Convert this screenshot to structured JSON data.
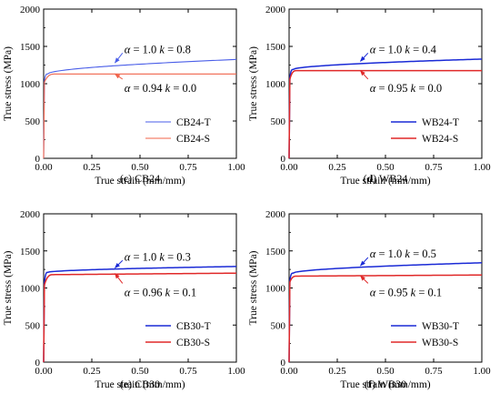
{
  "chart_data": [
    {
      "type": "line",
      "caption_letter": "(c)",
      "caption_text": "CB24",
      "xlabel": "True strain (mm/mm)",
      "ylabel": "True stress (MPa)",
      "xlim": [
        0,
        1.0
      ],
      "ylim": [
        0,
        2000
      ],
      "xticks": [
        "0.00",
        "0.25",
        "0.50",
        "0.75",
        "1.00"
      ],
      "yticks": [
        "0",
        "500",
        "1000",
        "1500",
        "2000"
      ],
      "legend_position": "bottom-right",
      "series": [
        {
          "name": "CB24-T",
          "color": "#4a5ee8",
          "yield": 1040,
          "peak": 1130,
          "x_peak": 0.02,
          "x_end": 1.0,
          "y_end": 1325,
          "curve": "hardening"
        },
        {
          "name": "CB24-S",
          "color": "#f0634a",
          "yield": 1020,
          "peak": 1130,
          "x_peak": 0.06,
          "x_end": 1.0,
          "y_end": 1130,
          "curve": "flat"
        }
      ],
      "annotations": [
        {
          "alpha": "1.0",
          "k": "0.8",
          "series": 0,
          "arrow_x": 0.37,
          "arrow_y": 1280,
          "text_x": 0.4,
          "text_y": 1460
        },
        {
          "alpha": "0.94",
          "k": "0.0",
          "series": 1,
          "arrow_x": 0.37,
          "arrow_y": 1130,
          "text_x": 0.4,
          "text_y": 940
        }
      ]
    },
    {
      "type": "line",
      "caption_letter": "(d)",
      "caption_text": "WB24",
      "xlabel": "True strain (mm/mm)",
      "ylabel": "True stress (MPa)",
      "xlim": [
        0,
        1.0
      ],
      "ylim": [
        0,
        2000
      ],
      "xticks": [
        "0.00",
        "0.25",
        "0.50",
        "0.75",
        "1.00"
      ],
      "yticks": [
        "0",
        "500",
        "1000",
        "1500",
        "2000"
      ],
      "legend_position": "bottom-right",
      "series": [
        {
          "name": "WB24-T",
          "color": "#1a2ad6",
          "yield": 1080,
          "peak": 1190,
          "x_peak": 0.02,
          "x_end": 1.0,
          "y_end": 1330,
          "curve": "hardening"
        },
        {
          "name": "WB24-S",
          "color": "#e02828",
          "yield": 1060,
          "peak": 1175,
          "x_peak": 0.04,
          "x_end": 1.0,
          "y_end": 1175,
          "curve": "flat"
        }
      ],
      "annotations": [
        {
          "alpha": "1.0",
          "k": "0.4",
          "series": 0,
          "arrow_x": 0.37,
          "arrow_y": 1300,
          "text_x": 0.4,
          "text_y": 1460
        },
        {
          "alpha": "0.95",
          "k": "0.0",
          "series": 1,
          "arrow_x": 0.37,
          "arrow_y": 1175,
          "text_x": 0.4,
          "text_y": 940
        }
      ]
    },
    {
      "type": "line",
      "caption_letter": "(e)",
      "caption_text": "CB30",
      "xlabel": "True strain (mm/mm)",
      "ylabel": "True stress (MPa)",
      "xlim": [
        0,
        1.0
      ],
      "ylim": [
        0,
        2000
      ],
      "xticks": [
        "0.00",
        "0.25",
        "0.50",
        "0.75",
        "1.00"
      ],
      "yticks": [
        "0",
        "500",
        "1000",
        "1500",
        "2000"
      ],
      "legend_position": "bottom-right",
      "series": [
        {
          "name": "CB30-T",
          "color": "#1a2ad6",
          "yield": 1060,
          "peak": 1210,
          "x_peak": 0.02,
          "x_end": 1.0,
          "y_end": 1290,
          "curve": "hardening"
        },
        {
          "name": "CB30-S",
          "color": "#e02828",
          "yield": 1040,
          "peak": 1180,
          "x_peak": 0.05,
          "x_end": 1.0,
          "y_end": 1200,
          "curve": "flat"
        }
      ],
      "annotations": [
        {
          "alpha": "1.0",
          "k": "0.3",
          "series": 0,
          "arrow_x": 0.37,
          "arrow_y": 1270,
          "text_x": 0.4,
          "text_y": 1420
        },
        {
          "alpha": "0.96",
          "k": "0.1",
          "series": 1,
          "arrow_x": 0.37,
          "arrow_y": 1195,
          "text_x": 0.4,
          "text_y": 940
        }
      ]
    },
    {
      "type": "line",
      "caption_letter": "(f)",
      "caption_text": "WB30",
      "xlabel": "True strain (mm/mm)",
      "ylabel": "True stress (MPa)",
      "xlim": [
        0,
        1.0
      ],
      "ylim": [
        0,
        2000
      ],
      "xticks": [
        "0.00",
        "0.25",
        "0.50",
        "0.75",
        "1.00"
      ],
      "yticks": [
        "0",
        "500",
        "1000",
        "1500",
        "2000"
      ],
      "legend_position": "bottom-right",
      "series": [
        {
          "name": "WB30-T",
          "color": "#1a2ad6",
          "yield": 1100,
          "peak": 1200,
          "x_peak": 0.02,
          "x_end": 1.0,
          "y_end": 1340,
          "curve": "hardening"
        },
        {
          "name": "WB30-S",
          "color": "#e02828",
          "yield": 1080,
          "peak": 1160,
          "x_peak": 0.04,
          "x_end": 1.0,
          "y_end": 1175,
          "curve": "flat"
        }
      ],
      "annotations": [
        {
          "alpha": "1.0",
          "k": "0.5",
          "series": 0,
          "arrow_x": 0.37,
          "arrow_y": 1300,
          "text_x": 0.4,
          "text_y": 1460
        },
        {
          "alpha": "0.95",
          "k": "0.1",
          "series": 1,
          "arrow_x": 0.37,
          "arrow_y": 1165,
          "text_x": 0.4,
          "text_y": 940
        }
      ]
    }
  ]
}
